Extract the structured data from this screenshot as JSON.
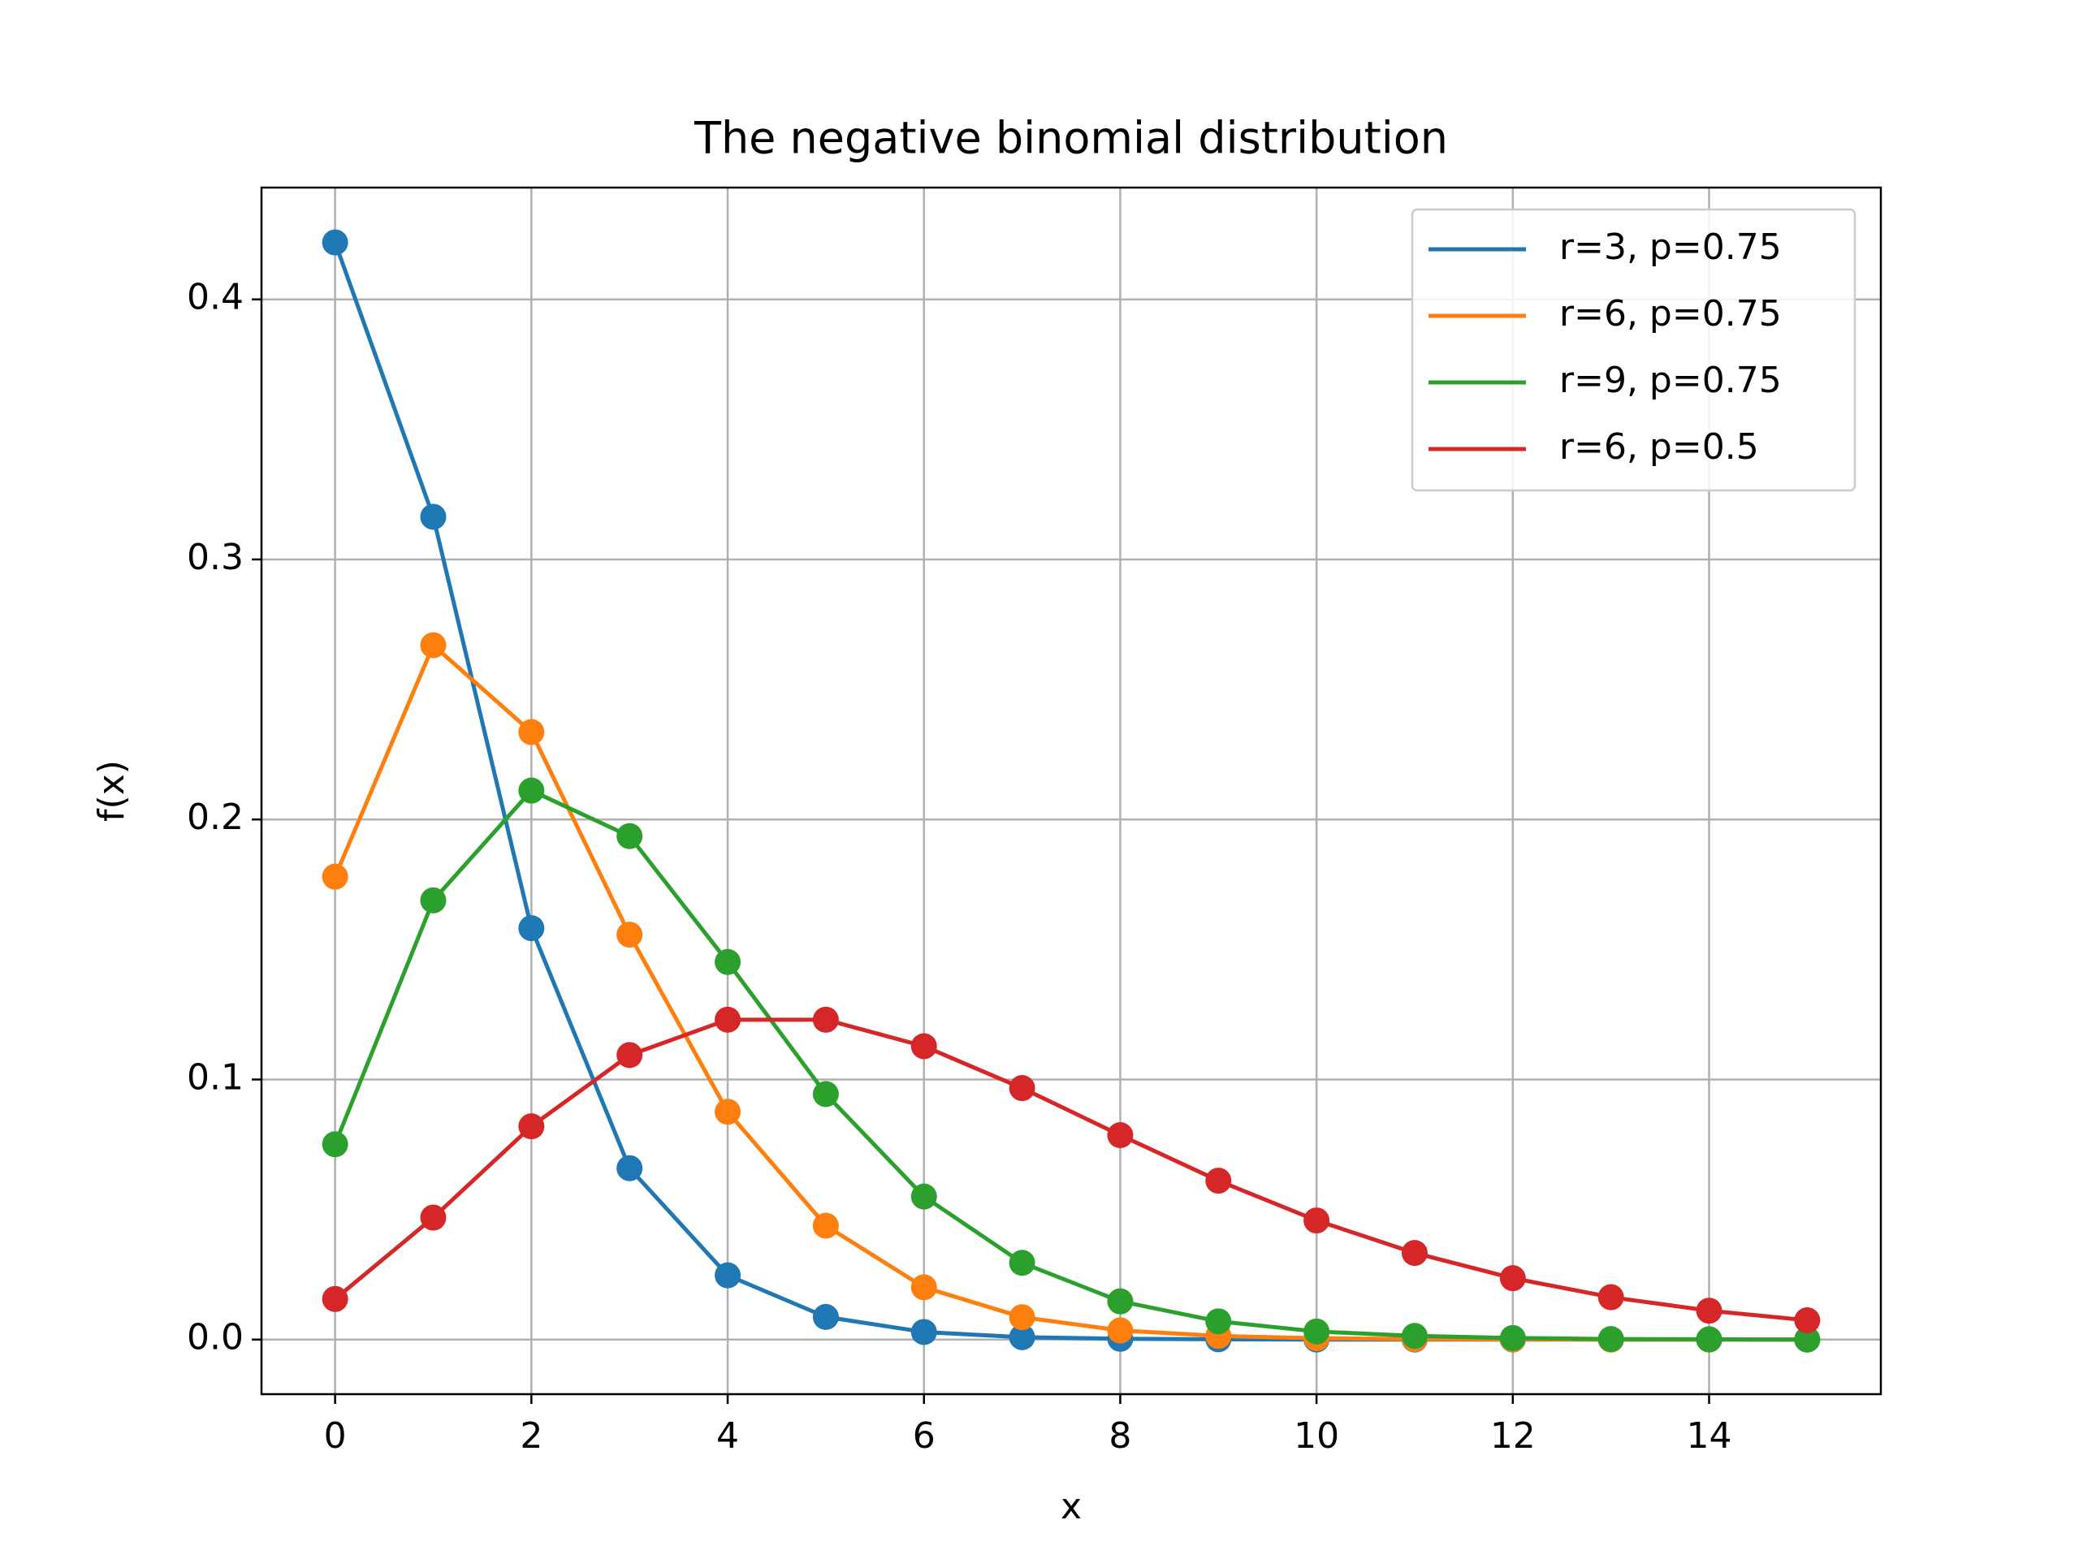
{
  "chart_data": {
    "type": "line",
    "title": "The negative binomial distribution",
    "x_label": "x",
    "y_label": "f(x)",
    "x": [
      0,
      1,
      2,
      3,
      4,
      5,
      6,
      7,
      8,
      9,
      10,
      11,
      12,
      13,
      14,
      15
    ],
    "series": [
      {
        "name": "r=3, p=0.75",
        "color": "#1f77b4",
        "values": [
          0.4219,
          0.3164,
          0.1582,
          0.0659,
          0.0247,
          0.0087,
          0.0029,
          0.0009,
          0.0003,
          0.0001,
          0.0,
          0.0,
          0.0,
          0.0,
          0.0,
          0.0
        ]
      },
      {
        "name": "r=6, p=0.75",
        "color": "#ff7f0e",
        "values": [
          0.178,
          0.267,
          0.2336,
          0.1557,
          0.0876,
          0.0438,
          0.0201,
          0.0086,
          0.0035,
          0.0014,
          0.0005,
          0.0002,
          0.0001,
          0.0,
          0.0,
          0.0
        ]
      },
      {
        "name": "r=9, p=0.75",
        "color": "#2ca02c",
        "values": [
          0.0751,
          0.1689,
          0.2111,
          0.1936,
          0.1452,
          0.0944,
          0.055,
          0.0295,
          0.0147,
          0.007,
          0.0031,
          0.0014,
          0.0006,
          0.0002,
          0.0001,
          0.0
        ]
      },
      {
        "name": "r=6, p=0.5",
        "color": "#d62728",
        "values": [
          0.0156,
          0.0469,
          0.082,
          0.1094,
          0.123,
          0.123,
          0.1128,
          0.0967,
          0.0786,
          0.0611,
          0.0458,
          0.0333,
          0.0236,
          0.0163,
          0.0111,
          0.0074
        ]
      }
    ],
    "xlim": [
      -0.75,
      15.75
    ],
    "xticks": [
      0,
      2,
      4,
      6,
      8,
      10,
      12,
      14
    ],
    "ylim": [
      -0.021,
      0.443
    ],
    "yticks": [
      {
        "value": 0,
        "label": "0.0"
      },
      0.1,
      0.2,
      0.3,
      0.4
    ],
    "grid": true,
    "legend": "upper-right",
    "markers": true
  }
}
